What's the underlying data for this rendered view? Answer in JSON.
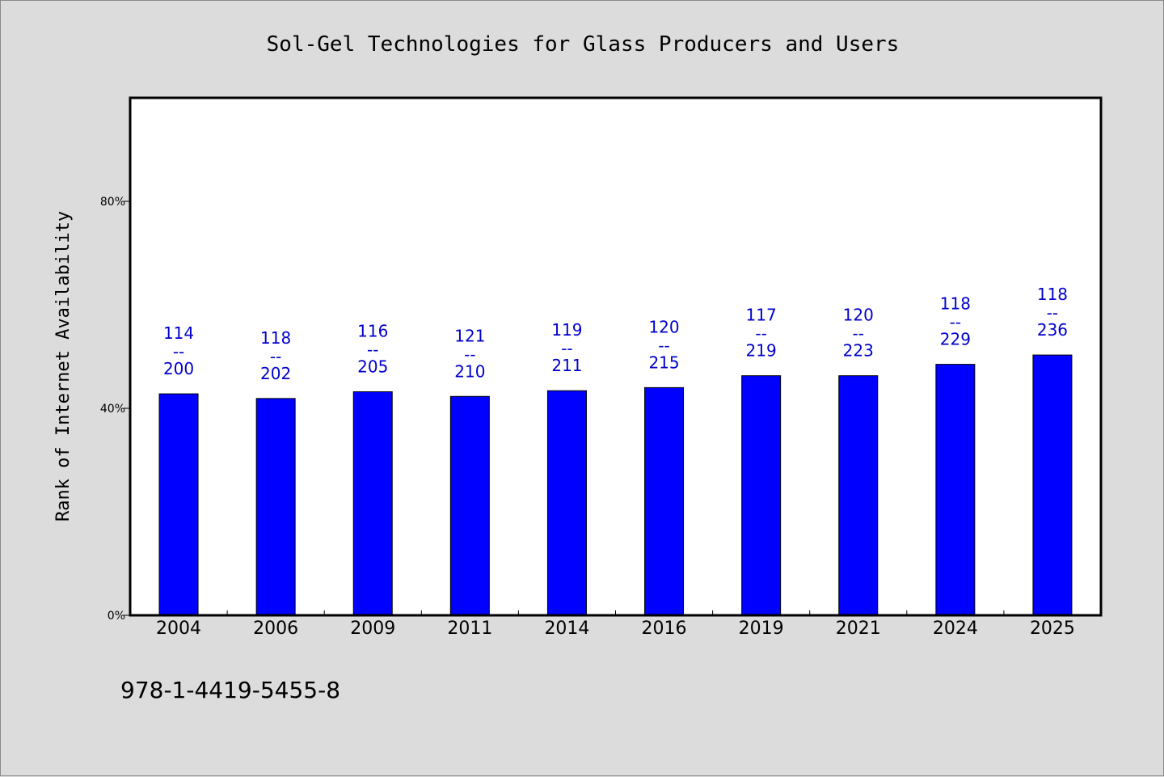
{
  "chart_data": {
    "type": "bar",
    "title": "Sol-Gel Technologies for Glass Producers and Users",
    "ylabel": "Rank of Internet Availability",
    "xlabel": "",
    "categories": [
      "2004",
      "2006",
      "2009",
      "2011",
      "2014",
      "2016",
      "2019",
      "2021",
      "2024",
      "2025"
    ],
    "values": [
      42.8,
      41.9,
      43.2,
      42.3,
      43.4,
      44.0,
      46.3,
      46.3,
      48.5,
      50.3
    ],
    "data_labels": [
      {
        "top": "114",
        "sep": "--",
        "bottom": "200"
      },
      {
        "top": "118",
        "sep": "--",
        "bottom": "202"
      },
      {
        "top": "116",
        "sep": "--",
        "bottom": "205"
      },
      {
        "top": "121",
        "sep": "--",
        "bottom": "210"
      },
      {
        "top": "119",
        "sep": "--",
        "bottom": "211"
      },
      {
        "top": "120",
        "sep": "--",
        "bottom": "215"
      },
      {
        "top": "117",
        "sep": "--",
        "bottom": "219"
      },
      {
        "top": "120",
        "sep": "--",
        "bottom": "223"
      },
      {
        "top": "118",
        "sep": "--",
        "bottom": "229"
      },
      {
        "top": "118",
        "sep": "--",
        "bottom": "236"
      }
    ],
    "yticks": [
      {
        "value": 0,
        "label": "0%"
      },
      {
        "value": 40,
        "label": "40%"
      },
      {
        "value": 80,
        "label": "80%"
      }
    ],
    "ylim": [
      0,
      100
    ],
    "grid": false,
    "legend": "none",
    "bar_color": "#0000ff",
    "label_color": "#0000cc"
  },
  "footer": {
    "isbn": "978-1-4419-5455-8"
  },
  "colors": {
    "background": "#dcdcdc",
    "plot_background": "#ffffff"
  }
}
